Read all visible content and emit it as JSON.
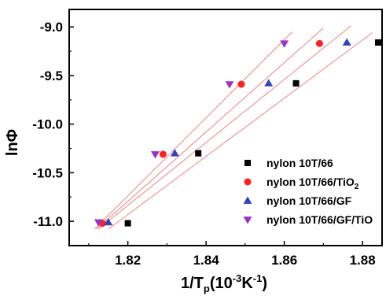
{
  "chart_data": {
    "type": "scatter",
    "xlabel": "1/T_p(10^-3K^-1)",
    "ylabel": "lnΦ",
    "xlim": [
      1.805,
      1.885
    ],
    "ylim": [
      -11.25,
      -8.82
    ],
    "x_ticks": [
      1.82,
      1.84,
      1.86,
      1.88
    ],
    "x_tick_labels": [
      "1.82",
      "1.84",
      "1.86",
      "1.88"
    ],
    "y_ticks": [
      -11.0,
      -10.5,
      -10.0,
      -9.5,
      -9.0
    ],
    "y_tick_labels": [
      "-11.0",
      "-10.5",
      "-10.0",
      "-9.5",
      "-9.0"
    ],
    "legend_position": "bottom-right",
    "fit_line_color": "#f08080",
    "series": [
      {
        "name": "nylon 10T/66",
        "marker": "square",
        "color": "#000000",
        "x": [
          1.82,
          1.838,
          1.863,
          1.884
        ],
        "y": [
          -11.02,
          -10.3,
          -9.58,
          -9.16
        ],
        "fit": [
          [
            1.815,
            -11.08
          ],
          [
            1.8825,
            -9.06
          ]
        ]
      },
      {
        "name": "nylon 10T/66/TiO2",
        "marker": "circle",
        "color": "#ff2020",
        "x": [
          1.8135,
          1.829,
          1.849,
          1.869
        ],
        "y": [
          -11.02,
          -10.31,
          -9.59,
          -9.17
        ],
        "fit": [
          [
            1.812,
            -11.08
          ],
          [
            1.87,
            -9.01
          ]
        ]
      },
      {
        "name": "nylon 10T/66/GF",
        "marker": "triangle-up",
        "color": "#3344bb",
        "x": [
          1.815,
          1.832,
          1.856,
          1.876
        ],
        "y": [
          -11.01,
          -10.3,
          -9.58,
          -9.16
        ],
        "fit": [
          [
            1.8125,
            -11.08
          ],
          [
            1.877,
            -8.99
          ]
        ]
      },
      {
        "name": "nylon 10T/66/GF/TiO",
        "marker": "triangle-down",
        "color": "#9933cc",
        "x": [
          1.8125,
          1.827,
          1.846,
          1.86
        ],
        "y": [
          -11.01,
          -10.31,
          -9.59,
          -9.17
        ],
        "fit": [
          [
            1.8115,
            -11.08
          ],
          [
            1.862,
            -9.05
          ]
        ]
      }
    ]
  }
}
